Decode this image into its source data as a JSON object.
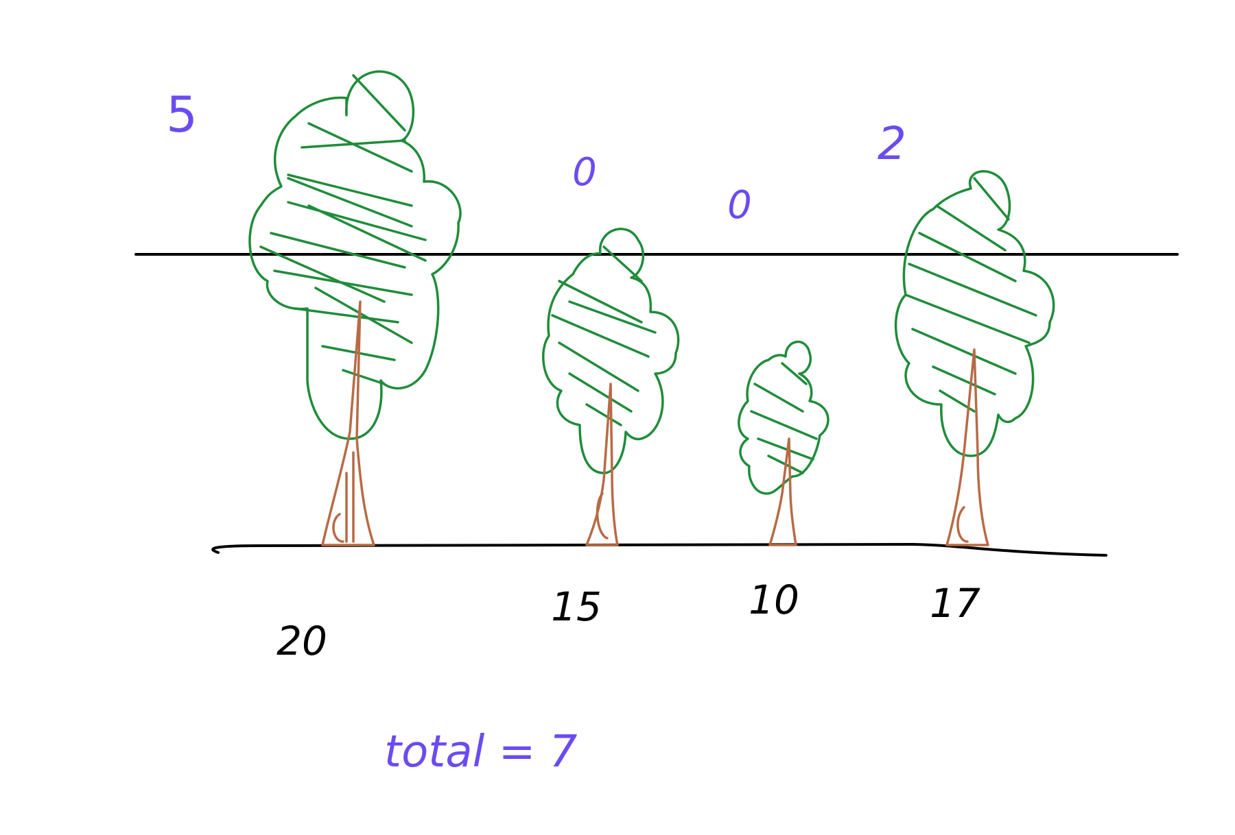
{
  "trees": [
    {
      "height": "20",
      "cut": "5"
    },
    {
      "height": "15",
      "cut": "0"
    },
    {
      "height": "10",
      "cut": "0"
    },
    {
      "height": "17",
      "cut": "2"
    }
  ],
  "total_text": "total = 7",
  "colors": {
    "foliage": "#1f8c3a",
    "trunk": "#b86a45",
    "ink": "#000000",
    "annotation": "#6a4cf0"
  }
}
